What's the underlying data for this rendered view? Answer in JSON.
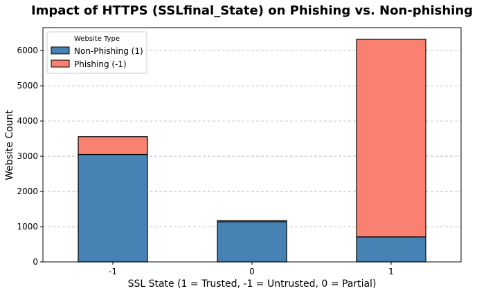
{
  "chart_data": {
    "type": "bar",
    "stacked": true,
    "title": "Impact of HTTPS (SSLfinal_State) on Phishing vs. Non-phishing",
    "xlabel": "SSL State (1 = Trusted, -1 = Untrusted, 0 = Partial)",
    "ylabel": "Website Count",
    "categories": [
      "-1",
      "0",
      "1"
    ],
    "ylim": [
      0,
      6650
    ],
    "yticks": [
      0,
      1000,
      2000,
      3000,
      4000,
      5000,
      6000
    ],
    "grid": "y-dashed",
    "legend": {
      "title": "Website Type",
      "placement": "top-left"
    },
    "series": [
      {
        "name": "Non-Phishing (1)",
        "color": "#4682b4",
        "values": [
          3050,
          1140,
          710
        ]
      },
      {
        "name": "Phishing (-1)",
        "color": "#fa8072",
        "values": [
          505,
          30,
          5610
        ]
      }
    ]
  }
}
